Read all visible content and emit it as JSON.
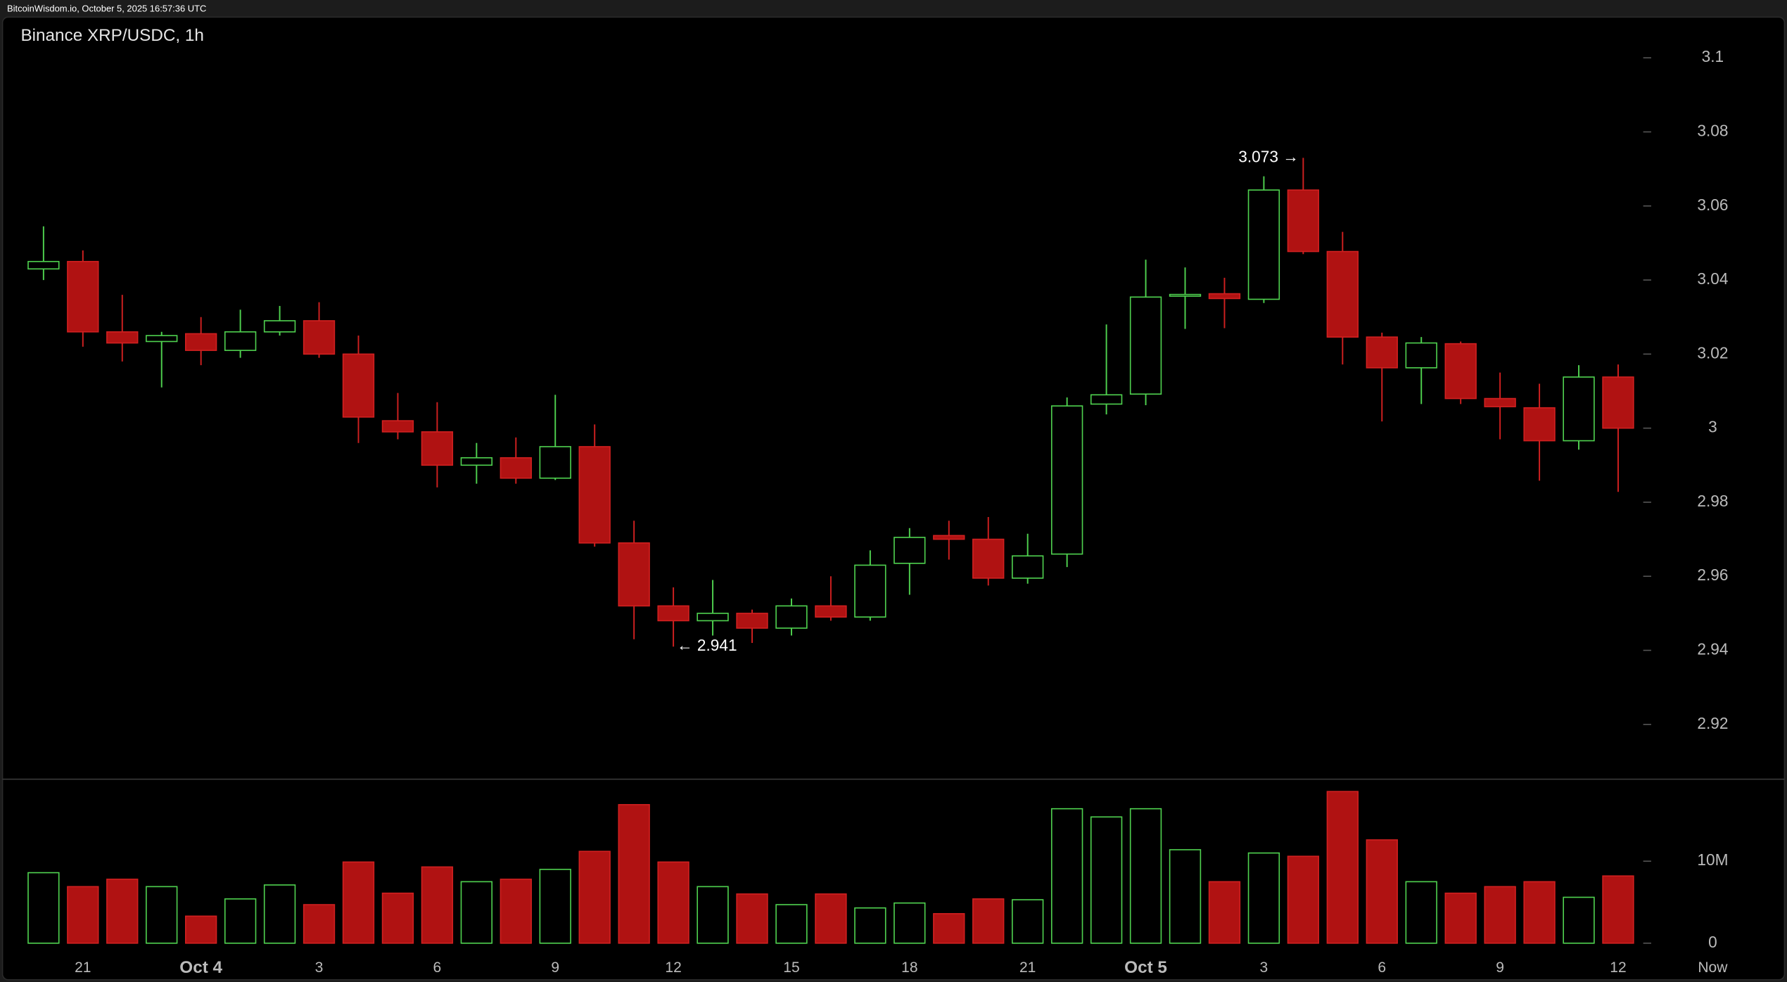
{
  "header": "BitcoinWisdom.io, October 5, 2025 16:57:36 UTC",
  "chart_data": {
    "type": "candlestick",
    "title": "Binance XRP/USDC, 1h",
    "categories": [
      null,
      "21",
      null,
      null,
      "Oct 4",
      null,
      null,
      "3",
      null,
      null,
      "6",
      null,
      null,
      "9",
      null,
      null,
      "12",
      null,
      null,
      "15",
      null,
      null,
      "18",
      null,
      null,
      "21",
      null,
      null,
      "Oct 5",
      null,
      null,
      "3",
      null,
      null,
      "6",
      null,
      null,
      "9",
      null,
      null,
      "12"
    ],
    "now_label": "Now",
    "open": [
      3.043,
      3.045,
      3.026,
      3.0234,
      3.0255,
      3.021,
      3.026,
      3.029,
      3.02,
      3.002,
      2.999,
      2.99,
      2.992,
      2.9865,
      2.995,
      2.969,
      2.952,
      2.948,
      2.95,
      2.946,
      2.952,
      2.949,
      2.9635,
      2.971,
      2.97,
      2.9595,
      2.966,
      3.0065,
      3.0092,
      3.036,
      3.0363,
      3.0348,
      3.0643,
      3.0477,
      3.0246,
      3.0163,
      3.0228,
      3.008,
      3.0055,
      2.9966,
      3.0138
    ],
    "high": [
      3.0545,
      3.048,
      3.036,
      3.026,
      3.03,
      3.032,
      3.033,
      3.034,
      3.025,
      3.0095,
      3.007,
      2.996,
      2.9975,
      3.009,
      3.001,
      2.975,
      2.957,
      2.959,
      2.951,
      2.954,
      2.96,
      2.967,
      2.973,
      2.975,
      2.976,
      2.9715,
      3.0083,
      3.028,
      3.0455,
      3.0434,
      3.0406,
      3.068,
      3.073,
      3.053,
      3.0258,
      3.0246,
      3.0234,
      3.015,
      3.012,
      3.017,
      3.0172
    ],
    "low": [
      3.04,
      3.022,
      3.018,
      3.011,
      3.017,
      3.019,
      3.025,
      3.019,
      2.996,
      2.997,
      2.984,
      2.985,
      2.985,
      2.986,
      2.968,
      2.943,
      2.941,
      2.944,
      2.942,
      2.944,
      2.948,
      2.948,
      2.955,
      2.9645,
      2.9575,
      2.958,
      2.9625,
      3.0037,
      3.0062,
      3.0268,
      3.027,
      3.0338,
      3.047,
      3.0172,
      3.0018,
      3.0065,
      3.0065,
      2.997,
      2.9858,
      2.9942,
      2.9828
    ],
    "close": [
      3.045,
      3.026,
      3.023,
      3.025,
      3.021,
      3.026,
      3.029,
      3.02,
      3.003,
      2.999,
      2.99,
      2.992,
      2.9865,
      2.995,
      2.969,
      2.952,
      2.948,
      2.95,
      2.946,
      2.952,
      2.949,
      2.963,
      2.9705,
      2.97,
      2.9595,
      2.9655,
      3.006,
      3.009,
      3.0354,
      3.0361,
      3.035,
      3.0643,
      3.0477,
      3.0246,
      3.0163,
      3.023,
      3.008,
      3.0058,
      2.9966,
      3.0138,
      3.0
    ],
    "volume": [
      8600000,
      6900000,
      7800000,
      6900000,
      3300000,
      5400000,
      7100000,
      4700000,
      9900000,
      6100000,
      9300000,
      7500000,
      7800000,
      9000000,
      11200000,
      16900000,
      9900000,
      6900000,
      6000000,
      4700000,
      6000000,
      4300000,
      4900000,
      3600000,
      5400000,
      5300000,
      16400000,
      15400000,
      16400000,
      11400000,
      7500000,
      11000000,
      10600000,
      18500000,
      12600000,
      7500000,
      6100000,
      6900000,
      7500000,
      5600000,
      8200000
    ],
    "up_color": "#4fd14f",
    "down_color": "#b01212",
    "high_label": "3.073 →",
    "low_label": "← 2.941",
    "ylim": [
      2.9052,
      3.111
    ],
    "yticks": [
      2.92,
      2.94,
      2.96,
      2.98,
      3,
      3.02,
      3.04,
      3.06,
      3.08,
      3.1
    ],
    "y2lim": [
      -1400000,
      20000000
    ],
    "y2ticks": [
      0,
      {
        "value": 10000000,
        "label": "10M"
      }
    ]
  }
}
